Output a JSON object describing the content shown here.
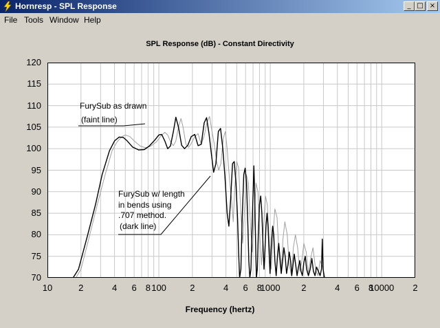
{
  "window": {
    "title": "Hornresp - SPL Response",
    "minimize_glyph": "_",
    "maximize_glyph": "□",
    "close_glyph": "×"
  },
  "menu": {
    "items": [
      "File",
      "Tools",
      "Window",
      "Help"
    ]
  },
  "colors": {
    "titlebar_start": "#0a246a",
    "titlebar_end": "#a6caf0",
    "background": "#d4d0c8",
    "plot_bg": "#ffffff",
    "grid": "#c8c8c8",
    "dark_line": "#000000",
    "faint_line": "#a0a0a0"
  },
  "chart_data": {
    "type": "line",
    "title": "SPL Response (dB) - Constant Directivity",
    "xlabel": "Frequency (hertz)",
    "ylabel": "",
    "x_scale": "log",
    "xlim": [
      10,
      20000
    ],
    "ylim": [
      70,
      120
    ],
    "grid": true,
    "y_ticks": [
      "120",
      "115",
      "110",
      "105",
      "100",
      "95",
      "90",
      "85",
      "80",
      "75",
      "70"
    ],
    "x_tick_labels": [
      {
        "x": 10,
        "label": "10"
      },
      {
        "x": 20,
        "label": "2"
      },
      {
        "x": 40,
        "label": "4"
      },
      {
        "x": 60,
        "label": "6"
      },
      {
        "x": 80,
        "label": "8"
      },
      {
        "x": 100,
        "label": "100"
      },
      {
        "x": 200,
        "label": "2"
      },
      {
        "x": 400,
        "label": "4"
      },
      {
        "x": 600,
        "label": "6"
      },
      {
        "x": 800,
        "label": "8"
      },
      {
        "x": 1000,
        "label": "1000"
      },
      {
        "x": 2000,
        "label": "2"
      },
      {
        "x": 4000,
        "label": "4"
      },
      {
        "x": 6000,
        "label": "6"
      },
      {
        "x": 8000,
        "label": "8"
      },
      {
        "x": 10000,
        "label": "10000"
      },
      {
        "x": 20000,
        "label": "2"
      }
    ],
    "annotations": {
      "faint": {
        "line1": "FurySub as drawn",
        "line2": "(faint line)"
      },
      "dark": {
        "line1": "FurySub w/ length",
        "line2": "in bends using",
        "line3": ".707 method.",
        "line4": "(dark line)"
      }
    },
    "series": [
      {
        "style": "faint",
        "points": [
          [
            18,
            70
          ],
          [
            20,
            72
          ],
          [
            24,
            80
          ],
          [
            28,
            87
          ],
          [
            33,
            94
          ],
          [
            38,
            99.5
          ],
          [
            42,
            101.5
          ],
          [
            46,
            102.7
          ],
          [
            50,
            103.2
          ],
          [
            55,
            102.8
          ],
          [
            60,
            101.8
          ],
          [
            68,
            100.6
          ],
          [
            76,
            100.2
          ],
          [
            85,
            100.6
          ],
          [
            95,
            101.6
          ],
          [
            105,
            103
          ],
          [
            113,
            103.8
          ],
          [
            120,
            103.2
          ],
          [
            128,
            101.5
          ],
          [
            135,
            100.7
          ],
          [
            142,
            101.8
          ],
          [
            150,
            105
          ],
          [
            158,
            107
          ],
          [
            165,
            105
          ],
          [
            175,
            101
          ],
          [
            185,
            100.3
          ],
          [
            195,
            101.2
          ],
          [
            210,
            102.8
          ],
          [
            225,
            103.5
          ],
          [
            240,
            101
          ],
          [
            255,
            103
          ],
          [
            270,
            106
          ],
          [
            285,
            107.5
          ],
          [
            300,
            104
          ],
          [
            315,
            101
          ],
          [
            330,
            97
          ],
          [
            345,
            95
          ],
          [
            360,
            96.5
          ],
          [
            380,
            102.5
          ],
          [
            395,
            104
          ],
          [
            410,
            100
          ],
          [
            430,
            93
          ],
          [
            450,
            88
          ],
          [
            465,
            83
          ],
          [
            480,
            91
          ],
          [
            500,
            97
          ],
          [
            520,
            95.5
          ],
          [
            545,
            85
          ],
          [
            565,
            78
          ],
          [
            590,
            87
          ],
          [
            610,
            94
          ],
          [
            635,
            92
          ],
          [
            665,
            82
          ],
          [
            690,
            76
          ],
          [
            720,
            85
          ],
          [
            745,
            92
          ],
          [
            775,
            90
          ],
          [
            805,
            80
          ],
          [
            835,
            73
          ],
          [
            870,
            82
          ],
          [
            905,
            89
          ],
          [
            940,
            87
          ],
          [
            980,
            78
          ],
          [
            1020,
            72
          ],
          [
            1060,
            80
          ],
          [
            1100,
            86
          ],
          [
            1150,
            84
          ],
          [
            1200,
            75
          ],
          [
            1250,
            71
          ],
          [
            1300,
            79
          ],
          [
            1350,
            83
          ],
          [
            1420,
            80
          ],
          [
            1480,
            73
          ],
          [
            1550,
            70.5
          ],
          [
            1610,
            77
          ],
          [
            1680,
            80
          ],
          [
            1760,
            77
          ],
          [
            1840,
            71.5
          ],
          [
            1920,
            74
          ],
          [
            2000,
            78
          ],
          [
            2100,
            76
          ],
          [
            2200,
            71
          ],
          [
            2300,
            74.5
          ],
          [
            2420,
            77
          ],
          [
            2550,
            72
          ],
          [
            2680,
            70.5
          ],
          [
            2800,
            74
          ],
          [
            2950,
            72.5
          ],
          [
            3100,
            70
          ]
        ]
      },
      {
        "style": "dark",
        "points": [
          [
            17,
            70
          ],
          [
            19,
            72
          ],
          [
            23,
            80
          ],
          [
            27,
            87
          ],
          [
            31,
            94
          ],
          [
            36,
            99.5
          ],
          [
            40,
            101.8
          ],
          [
            44,
            102.7
          ],
          [
            48,
            102.6
          ],
          [
            52,
            101.8
          ],
          [
            58,
            100.4
          ],
          [
            66,
            99.7
          ],
          [
            74,
            99.8
          ],
          [
            82,
            100.6
          ],
          [
            92,
            102
          ],
          [
            100,
            103.2
          ],
          [
            106,
            103.3
          ],
          [
            113,
            101.8
          ],
          [
            120,
            100
          ],
          [
            127,
            100.6
          ],
          [
            135,
            104
          ],
          [
            142,
            107.3
          ],
          [
            150,
            105
          ],
          [
            160,
            100.8
          ],
          [
            170,
            100
          ],
          [
            182,
            100.8
          ],
          [
            195,
            102.8
          ],
          [
            210,
            103.3
          ],
          [
            225,
            100.7
          ],
          [
            240,
            101
          ],
          [
            255,
            106
          ],
          [
            268,
            107.2
          ],
          [
            282,
            103.5
          ],
          [
            297,
            98.5
          ],
          [
            310,
            94.5
          ],
          [
            325,
            96.5
          ],
          [
            342,
            104
          ],
          [
            358,
            104.7
          ],
          [
            375,
            100
          ],
          [
            392,
            93.5
          ],
          [
            410,
            85
          ],
          [
            425,
            82
          ],
          [
            440,
            88
          ],
          [
            458,
            96.5
          ],
          [
            475,
            97
          ],
          [
            492,
            92
          ],
          [
            508,
            84
          ],
          [
            520,
            76
          ],
          [
            530,
            70
          ],
          [
            545,
            72
          ],
          [
            560,
            84
          ],
          [
            578,
            94
          ],
          [
            595,
            95.5
          ],
          [
            612,
            92
          ],
          [
            628,
            83
          ],
          [
            642,
            74
          ],
          [
            655,
            70
          ],
          [
            670,
            72
          ],
          [
            685,
            81
          ],
          [
            700,
            89
          ],
          [
            713,
            96
          ],
          [
            725,
            89
          ],
          [
            738,
            78
          ],
          [
            750,
            70
          ],
          [
            765,
            72
          ],
          [
            780,
            80
          ],
          [
            800,
            87
          ],
          [
            820,
            89
          ],
          [
            840,
            85
          ],
          [
            860,
            78
          ],
          [
            878,
            72
          ],
          [
            895,
            76
          ],
          [
            915,
            82
          ],
          [
            935,
            85
          ],
          [
            955,
            82
          ],
          [
            975,
            76
          ],
          [
            995,
            71
          ],
          [
            1010,
            75
          ],
          [
            1030,
            79
          ],
          [
            1050,
            82
          ],
          [
            1075,
            80
          ],
          [
            1100,
            74
          ],
          [
            1130,
            70.5
          ],
          [
            1160,
            75
          ],
          [
            1190,
            78
          ],
          [
            1220,
            75
          ],
          [
            1255,
            71
          ],
          [
            1290,
            74
          ],
          [
            1325,
            77
          ],
          [
            1360,
            75
          ],
          [
            1400,
            71
          ],
          [
            1440,
            73
          ],
          [
            1480,
            76
          ],
          [
            1520,
            74
          ],
          [
            1560,
            70.5
          ],
          [
            1600,
            73
          ],
          [
            1640,
            75.5
          ],
          [
            1690,
            73
          ],
          [
            1740,
            70.5
          ],
          [
            1790,
            72.5
          ],
          [
            1840,
            74
          ],
          [
            1890,
            71.5
          ],
          [
            1940,
            70.5
          ],
          [
            2000,
            73.5
          ],
          [
            2060,
            75
          ],
          [
            2120,
            72
          ],
          [
            2200,
            70.5
          ],
          [
            2280,
            72
          ],
          [
            2360,
            74.5
          ],
          [
            2440,
            71.5
          ],
          [
            2520,
            70.5
          ],
          [
            2600,
            72.5
          ],
          [
            2700,
            71.5
          ],
          [
            2800,
            70.5
          ],
          [
            2880,
            72
          ],
          [
            2930,
            79
          ],
          [
            2980,
            72
          ],
          [
            3050,
            70
          ]
        ]
      }
    ]
  }
}
